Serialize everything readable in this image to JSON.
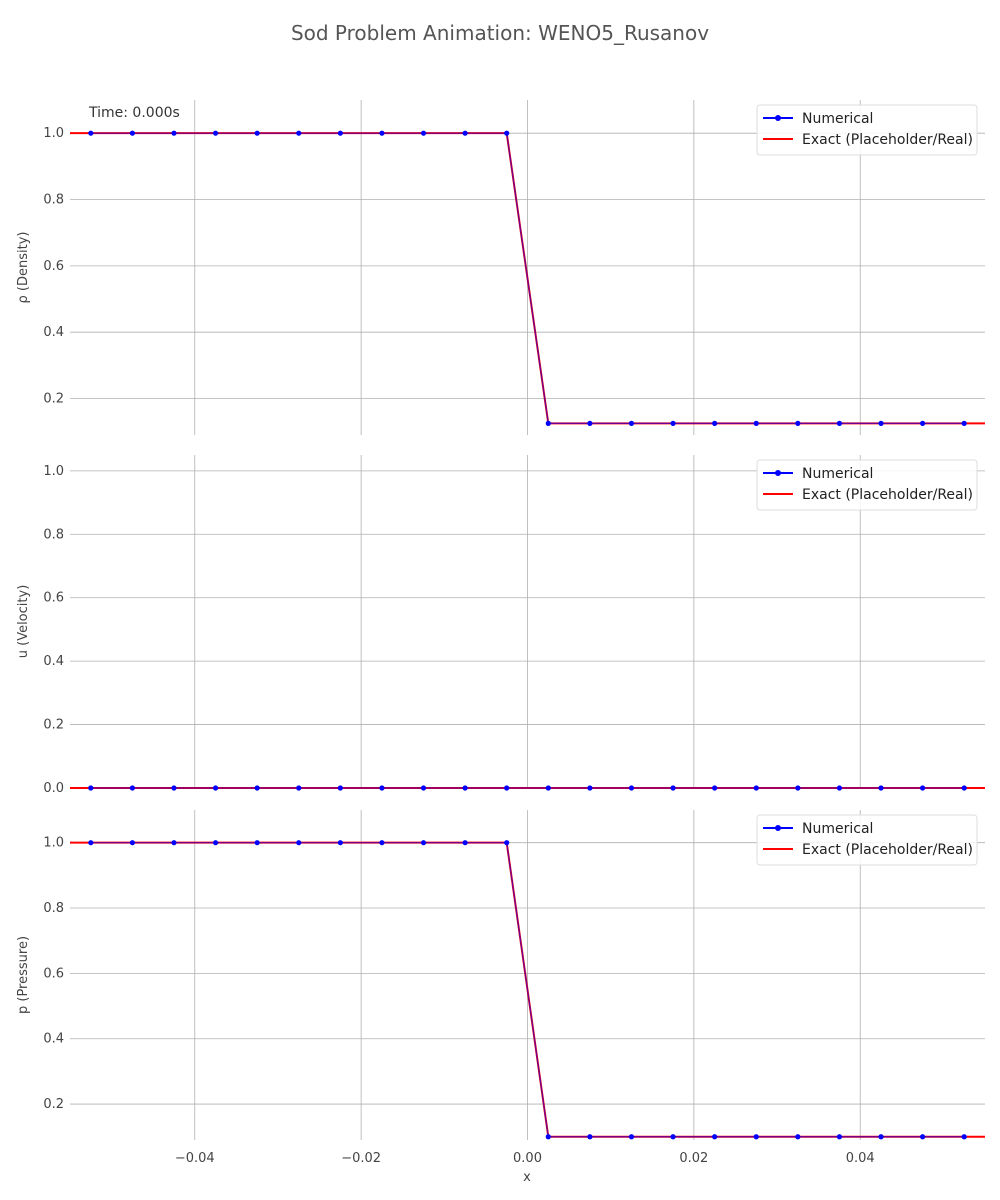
{
  "title": "Sod Problem Animation: WENO5_Rusanov",
  "xlabel": "x",
  "time_label": "Time: 0.000s",
  "x_ticks": [
    "−0.04",
    "−0.02",
    "0.00",
    "0.02",
    "0.04"
  ],
  "legend": {
    "numerical": "Numerical",
    "exact": "Exact (Placeholder/Real)"
  },
  "colors": {
    "numerical": "#0000ff",
    "exact": "#ff0000",
    "grid": "#b0b0b0"
  },
  "chart_data": [
    {
      "type": "line",
      "ylabel": "ρ (Density)",
      "xlim": [
        -0.055,
        0.055
      ],
      "ylim": [
        0.09,
        1.1
      ],
      "y_ticks": [
        "0.2",
        "0.4",
        "0.6",
        "0.8",
        "1.0"
      ],
      "y_tick_values": [
        0.2,
        0.4,
        0.6,
        0.8,
        1.0
      ],
      "grid": true,
      "legend_position": "top-right",
      "series": [
        {
          "name": "Numerical",
          "x": [
            -0.0525,
            -0.0475,
            -0.0425,
            -0.0375,
            -0.0325,
            -0.0275,
            -0.0225,
            -0.0175,
            -0.0125,
            -0.0075,
            -0.0025,
            0.0025,
            0.0075,
            0.0125,
            0.0175,
            0.0225,
            0.0275,
            0.0325,
            0.0375,
            0.0425,
            0.0475,
            0.0525
          ],
          "y": [
            1,
            1,
            1,
            1,
            1,
            1,
            1,
            1,
            1,
            1,
            1,
            0.125,
            0.125,
            0.125,
            0.125,
            0.125,
            0.125,
            0.125,
            0.125,
            0.125,
            0.125,
            0.125
          ]
        },
        {
          "name": "Exact (Placeholder/Real)",
          "x": [
            -0.055,
            -0.0025,
            0.0025,
            0.055
          ],
          "y": [
            1,
            1,
            0.125,
            0.125
          ]
        }
      ]
    },
    {
      "type": "line",
      "ylabel": "u (Velocity)",
      "xlim": [
        -0.055,
        0.055
      ],
      "ylim": [
        0,
        1.05
      ],
      "y_ticks": [
        "0.0",
        "0.2",
        "0.4",
        "0.6",
        "0.8",
        "1.0"
      ],
      "y_tick_values": [
        0,
        0.2,
        0.4,
        0.6,
        0.8,
        1.0
      ],
      "grid": true,
      "legend_position": "top-right",
      "series": [
        {
          "name": "Numerical",
          "x": [
            -0.0525,
            -0.0475,
            -0.0425,
            -0.0375,
            -0.0325,
            -0.0275,
            -0.0225,
            -0.0175,
            -0.0125,
            -0.0075,
            -0.0025,
            0.0025,
            0.0075,
            0.0125,
            0.0175,
            0.0225,
            0.0275,
            0.0325,
            0.0375,
            0.0425,
            0.0475,
            0.0525
          ],
          "y": [
            0,
            0,
            0,
            0,
            0,
            0,
            0,
            0,
            0,
            0,
            0,
            0,
            0,
            0,
            0,
            0,
            0,
            0,
            0,
            0,
            0,
            0
          ]
        },
        {
          "name": "Exact (Placeholder/Real)",
          "x": [
            -0.055,
            0.055
          ],
          "y": [
            0,
            0
          ]
        }
      ]
    },
    {
      "type": "line",
      "ylabel": "p (Pressure)",
      "xlim": [
        -0.055,
        0.055
      ],
      "ylim": [
        0.09,
        1.1
      ],
      "y_ticks": [
        "0.2",
        "0.4",
        "0.6",
        "0.8",
        "1.0"
      ],
      "y_tick_values": [
        0.2,
        0.4,
        0.6,
        0.8,
        1.0
      ],
      "grid": true,
      "legend_position": "top-right",
      "series": [
        {
          "name": "Numerical",
          "x": [
            -0.0525,
            -0.0475,
            -0.0425,
            -0.0375,
            -0.0325,
            -0.0275,
            -0.0225,
            -0.0175,
            -0.0125,
            -0.0075,
            -0.0025,
            0.0025,
            0.0075,
            0.0125,
            0.0175,
            0.0225,
            0.0275,
            0.0325,
            0.0375,
            0.0425,
            0.0475,
            0.0525
          ],
          "y": [
            1,
            1,
            1,
            1,
            1,
            1,
            1,
            1,
            1,
            1,
            1,
            0.1,
            0.1,
            0.1,
            0.1,
            0.1,
            0.1,
            0.1,
            0.1,
            0.1,
            0.1,
            0.1
          ]
        },
        {
          "name": "Exact (Placeholder/Real)",
          "x": [
            -0.055,
            -0.0025,
            0.0025,
            0.055
          ],
          "y": [
            1,
            1,
            0.1,
            0.1
          ]
        }
      ]
    }
  ]
}
